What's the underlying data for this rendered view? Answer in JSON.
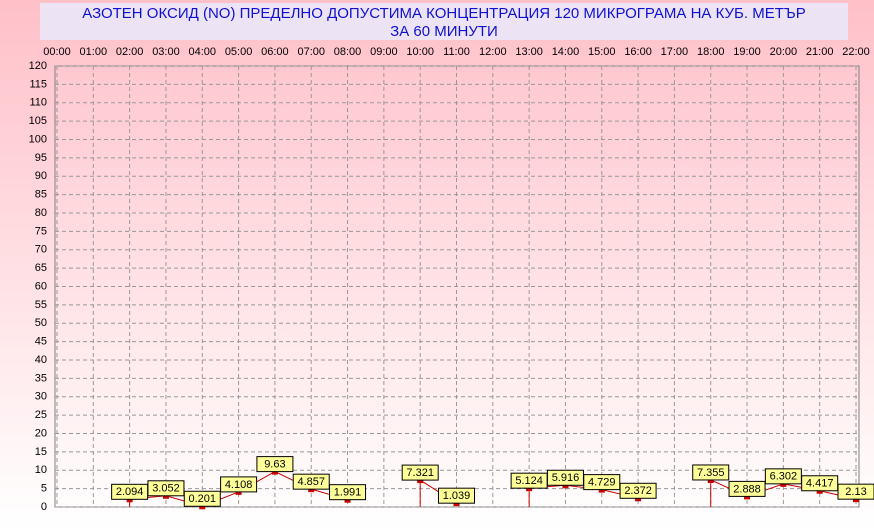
{
  "chart_data": {
    "type": "line",
    "title": "АЗОТЕН ОКСИД   (NO)     ПРЕДЕЛНО ДОПУСТИМА КОНЦЕНТРАЦИЯ 120 МИКРОГРАМА  НА КУБ. МЕТЪР",
    "subtitle": "ЗА 60 МИНУТИ",
    "categories": [
      "00:00",
      "01:00",
      "02:00",
      "03:00",
      "04:00",
      "05:00",
      "06:00",
      "07:00",
      "08:00",
      "09:00",
      "10:00",
      "11:00",
      "12:00",
      "13:00",
      "14:00",
      "15:00",
      "16:00",
      "17:00",
      "18:00",
      "19:00",
      "20:00",
      "21:00",
      "22:00"
    ],
    "values": [
      null,
      null,
      2.094,
      3.052,
      0.201,
      4.108,
      9.63,
      4.857,
      1.991,
      null,
      7.321,
      1.039,
      null,
      5.124,
      5.916,
      4.729,
      2.372,
      null,
      7.355,
      2.888,
      6.302,
      4.417,
      2.13
    ],
    "color": "#cc0000",
    "ylim": [
      0,
      120
    ],
    "yticks": [
      0,
      5,
      10,
      15,
      20,
      25,
      30,
      35,
      40,
      45,
      50,
      55,
      60,
      65,
      70,
      75,
      80,
      85,
      90,
      95,
      100,
      105,
      110,
      115,
      120
    ],
    "grid": true
  }
}
